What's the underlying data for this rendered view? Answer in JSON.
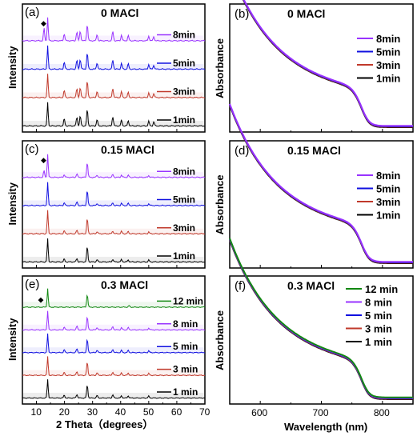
{
  "figure": {
    "colors": {
      "8min": "#9933ff",
      "5min": "#1010e0",
      "3min": "#c0392b",
      "1min": "#000000",
      "12min": "#118811",
      "dot": "#000000"
    }
  },
  "chart_data": [
    {
      "type": "line",
      "panel_label": "(a)",
      "title": "0 MACl",
      "ylabel": "Intensity",
      "xlim": [
        5,
        70
      ],
      "series": [
        {
          "name": "8min",
          "color_key": "8min",
          "peaks": [
            [
              12.7,
              0.55
            ],
            [
              14.0,
              1.0
            ],
            [
              19.9,
              0.3
            ],
            [
              24.4,
              0.38
            ],
            [
              25.6,
              0.42
            ],
            [
              28.1,
              0.7
            ],
            [
              31.6,
              0.28
            ],
            [
              37.2,
              0.4
            ],
            [
              40.3,
              0.25
            ],
            [
              42.7,
              0.22
            ],
            [
              50.0,
              0.2
            ],
            [
              51.8,
              0.17
            ]
          ]
        },
        {
          "name": "5min",
          "color_key": "5min",
          "peaks": [
            [
              14.0,
              1.0
            ],
            [
              19.9,
              0.3
            ],
            [
              24.4,
              0.38
            ],
            [
              25.6,
              0.42
            ],
            [
              28.1,
              0.7
            ],
            [
              31.6,
              0.28
            ],
            [
              37.2,
              0.4
            ],
            [
              40.3,
              0.25
            ],
            [
              42.7,
              0.22
            ],
            [
              50.0,
              0.2
            ],
            [
              51.8,
              0.17
            ]
          ]
        },
        {
          "name": "3min",
          "color_key": "3min",
          "peaks": [
            [
              14.0,
              1.0
            ],
            [
              19.9,
              0.3
            ],
            [
              24.4,
              0.38
            ],
            [
              25.6,
              0.42
            ],
            [
              28.1,
              0.7
            ],
            [
              31.6,
              0.28
            ],
            [
              37.2,
              0.4
            ],
            [
              40.3,
              0.25
            ],
            [
              42.7,
              0.22
            ],
            [
              50.0,
              0.2
            ],
            [
              51.8,
              0.17
            ]
          ]
        },
        {
          "name": "1min",
          "color_key": "1min",
          "peaks": [
            [
              14.0,
              1.0
            ],
            [
              19.9,
              0.3
            ],
            [
              24.4,
              0.38
            ],
            [
              25.6,
              0.42
            ],
            [
              28.1,
              0.7
            ],
            [
              31.6,
              0.28
            ],
            [
              37.2,
              0.4
            ],
            [
              40.3,
              0.25
            ],
            [
              42.7,
              0.22
            ],
            [
              50.0,
              0.2
            ],
            [
              51.8,
              0.17
            ]
          ]
        }
      ],
      "marker": {
        "symbol": "◆",
        "x": 12.7
      }
    },
    {
      "type": "line",
      "panel_label": "(b)",
      "title": "0 MACl",
      "ylabel": "Absorbance",
      "xlim": [
        550,
        850
      ],
      "series": [
        {
          "name": "8min",
          "color_key": "8min"
        },
        {
          "name": "5min",
          "color_key": "5min"
        },
        {
          "name": "3min",
          "color_key": "3min"
        },
        {
          "name": "1min",
          "color_key": "1min"
        }
      ]
    },
    {
      "type": "line",
      "panel_label": "(c)",
      "title": "0.15 MACl",
      "ylabel": "Intensity",
      "xlim": [
        5,
        70
      ],
      "series": [
        {
          "name": "8min",
          "color_key": "8min",
          "peaks": [
            [
              12.7,
              0.3
            ],
            [
              14.0,
              1.0
            ],
            [
              19.9,
              0.12
            ],
            [
              24.4,
              0.15
            ],
            [
              28.1,
              0.65
            ],
            [
              31.6,
              0.1
            ],
            [
              37.2,
              0.12
            ],
            [
              40.3,
              0.1
            ],
            [
              42.7,
              0.09
            ],
            [
              50.0,
              0.08
            ]
          ]
        },
        {
          "name": "5min",
          "color_key": "5min",
          "peaks": [
            [
              14.0,
              1.0
            ],
            [
              19.9,
              0.12
            ],
            [
              24.4,
              0.15
            ],
            [
              28.1,
              0.65
            ],
            [
              31.6,
              0.1
            ],
            [
              37.2,
              0.12
            ],
            [
              40.3,
              0.1
            ],
            [
              42.7,
              0.09
            ],
            [
              50.0,
              0.08
            ]
          ]
        },
        {
          "name": "3min",
          "color_key": "3min",
          "peaks": [
            [
              14.0,
              1.0
            ],
            [
              19.9,
              0.12
            ],
            [
              24.4,
              0.15
            ],
            [
              28.1,
              0.65
            ],
            [
              31.6,
              0.1
            ],
            [
              37.2,
              0.12
            ],
            [
              40.3,
              0.1
            ],
            [
              42.7,
              0.09
            ],
            [
              50.0,
              0.08
            ]
          ]
        },
        {
          "name": "1min",
          "color_key": "1min",
          "peaks": [
            [
              14.0,
              1.0
            ],
            [
              19.9,
              0.12
            ],
            [
              24.4,
              0.15
            ],
            [
              28.1,
              0.65
            ],
            [
              31.6,
              0.1
            ],
            [
              37.2,
              0.12
            ],
            [
              40.3,
              0.1
            ],
            [
              42.7,
              0.09
            ],
            [
              50.0,
              0.08
            ]
          ]
        }
      ],
      "marker": {
        "symbol": "◆",
        "x": 12.7
      }
    },
    {
      "type": "line",
      "panel_label": "(d)",
      "title": "0.15 MACl",
      "ylabel": "Absorbance",
      "xlim": [
        550,
        850
      ],
      "series": [
        {
          "name": "8min",
          "color_key": "8min"
        },
        {
          "name": "5min",
          "color_key": "5min"
        },
        {
          "name": "3min",
          "color_key": "3min"
        },
        {
          "name": "1min",
          "color_key": "1min"
        }
      ]
    },
    {
      "type": "line",
      "panel_label": "(e)",
      "title": "0.3 MACl",
      "ylabel": "Intensity",
      "xlabel": "2 Theta（degrees）",
      "xlim": [
        5,
        70
      ],
      "xticks": [
        10,
        20,
        30,
        40,
        50,
        60,
        70
      ],
      "series": [
        {
          "name": "12 min",
          "color_key": "12min",
          "peaks": [
            [
              14.0,
              1.0
            ],
            [
              28.1,
              0.68
            ],
            [
              43.0,
              0.08
            ]
          ]
        },
        {
          "name": "8 min",
          "color_key": "8min",
          "peaks": [
            [
              14.0,
              1.0
            ],
            [
              19.9,
              0.15
            ],
            [
              24.4,
              0.2
            ],
            [
              28.1,
              0.7
            ],
            [
              31.6,
              0.14
            ],
            [
              37.2,
              0.18
            ],
            [
              40.3,
              0.12
            ],
            [
              42.7,
              0.12
            ],
            [
              50.0,
              0.1
            ]
          ]
        },
        {
          "name": "5 min",
          "color_key": "5min",
          "peaks": [
            [
              14.0,
              1.0
            ],
            [
              19.9,
              0.15
            ],
            [
              24.4,
              0.2
            ],
            [
              28.1,
              0.7
            ],
            [
              31.6,
              0.14
            ],
            [
              37.2,
              0.18
            ],
            [
              40.3,
              0.12
            ],
            [
              42.7,
              0.12
            ],
            [
              50.0,
              0.1
            ]
          ]
        },
        {
          "name": "3 min",
          "color_key": "3min",
          "peaks": [
            [
              14.0,
              1.0
            ],
            [
              19.9,
              0.15
            ],
            [
              24.4,
              0.2
            ],
            [
              28.1,
              0.7
            ],
            [
              31.6,
              0.14
            ],
            [
              37.2,
              0.18
            ],
            [
              40.3,
              0.12
            ],
            [
              42.7,
              0.12
            ],
            [
              50.0,
              0.1
            ]
          ]
        },
        {
          "name": "1 min",
          "color_key": "1min",
          "peaks": [
            [
              14.0,
              1.0
            ],
            [
              19.9,
              0.15
            ],
            [
              24.4,
              0.2
            ],
            [
              28.1,
              0.7
            ],
            [
              31.6,
              0.14
            ],
            [
              37.2,
              0.18
            ],
            [
              40.3,
              0.12
            ],
            [
              42.7,
              0.12
            ],
            [
              50.0,
              0.1
            ]
          ]
        }
      ],
      "marker": {
        "symbol": "◆",
        "x": 11.7
      }
    },
    {
      "type": "line",
      "panel_label": "(f)",
      "title": "0.3 MACl",
      "ylabel": "Absorbance",
      "xlabel": "Wavelength (nm)",
      "xlim": [
        550,
        850
      ],
      "xticks": [
        600,
        700,
        800
      ],
      "series": [
        {
          "name": "12 min",
          "color_key": "12min"
        },
        {
          "name": "8 min",
          "color_key": "8min"
        },
        {
          "name": "5 min",
          "color_key": "5min"
        },
        {
          "name": "3 min",
          "color_key": "3min"
        },
        {
          "name": "1 min",
          "color_key": "1min"
        }
      ]
    }
  ]
}
